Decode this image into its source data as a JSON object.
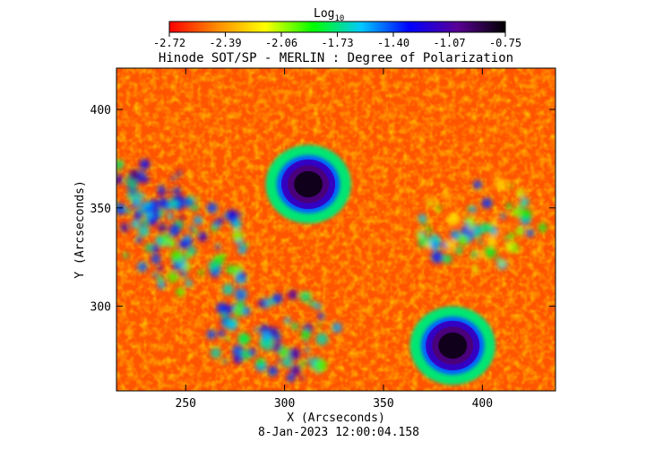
{
  "chart_data": {
    "type": "heatmap",
    "title": "Hinode SOT/SP - MERLIN : Degree of Polarization",
    "xlabel": "X (Arcseconds)",
    "ylabel": "Y (Arcseconds)",
    "timestamp": "8-Jan-2023 12:00:04.158",
    "xlim": [
      215,
      437
    ],
    "ylim": [
      257,
      421
    ],
    "x_ticks": [
      250,
      300,
      350,
      400
    ],
    "y_ticks": [
      300,
      350,
      400
    ],
    "colorbar": {
      "label": "Log",
      "label_subscript": "10",
      "range": [
        -2.72,
        -0.75
      ],
      "tick_labels": [
        "-2.72",
        "-2.39",
        "-2.06",
        "-1.73",
        "-1.40",
        "-1.07",
        "-0.75"
      ],
      "colors": [
        "#ff0000",
        "#ff8c00",
        "#ffff00",
        "#00ff00",
        "#00c8ff",
        "#0000ff",
        "#5a0096",
        "#000000"
      ]
    },
    "background_value": -2.55,
    "features": [
      {
        "kind": "spot",
        "x": 312,
        "y": 362,
        "radius": 16,
        "core_value": -0.8
      },
      {
        "kind": "spot",
        "x": 385,
        "y": 280,
        "radius": 16,
        "core_value": -0.8
      },
      {
        "kind": "plage",
        "x": 255,
        "y": 330,
        "value": -1.6
      },
      {
        "kind": "plage",
        "x": 295,
        "y": 285,
        "value": -1.5
      },
      {
        "kind": "plage",
        "x": 400,
        "y": 340,
        "value": -1.8
      },
      {
        "kind": "plage",
        "x": 225,
        "y": 350,
        "value": -1.4
      }
    ]
  }
}
